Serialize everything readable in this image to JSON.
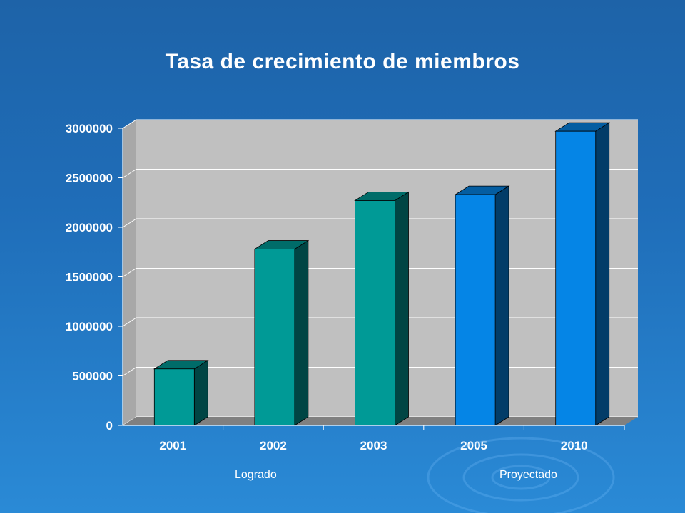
{
  "slide": {
    "title": "Tasa de crecimiento de miembros"
  },
  "chart_data": {
    "type": "bar",
    "categories": [
      "2001",
      "2002",
      "2003",
      "2005",
      "2010"
    ],
    "values": [
      570000,
      1780000,
      2270000,
      2330000,
      2970000
    ],
    "ylim": [
      0,
      3000000
    ],
    "yticks": [
      "0",
      "500000",
      "1000000",
      "1500000",
      "2000000",
      "2500000",
      "3000000"
    ],
    "bar_colors": [
      "#009a96",
      "#009a96",
      "#009a96",
      "#0585e6",
      "#0585e6"
    ],
    "grid": true,
    "annotations": [
      "Logrado",
      "Proyectado"
    ]
  },
  "colors": {
    "plot_wall": "#c0c0c0",
    "floor": "#808080",
    "background": "#1f6db8"
  }
}
